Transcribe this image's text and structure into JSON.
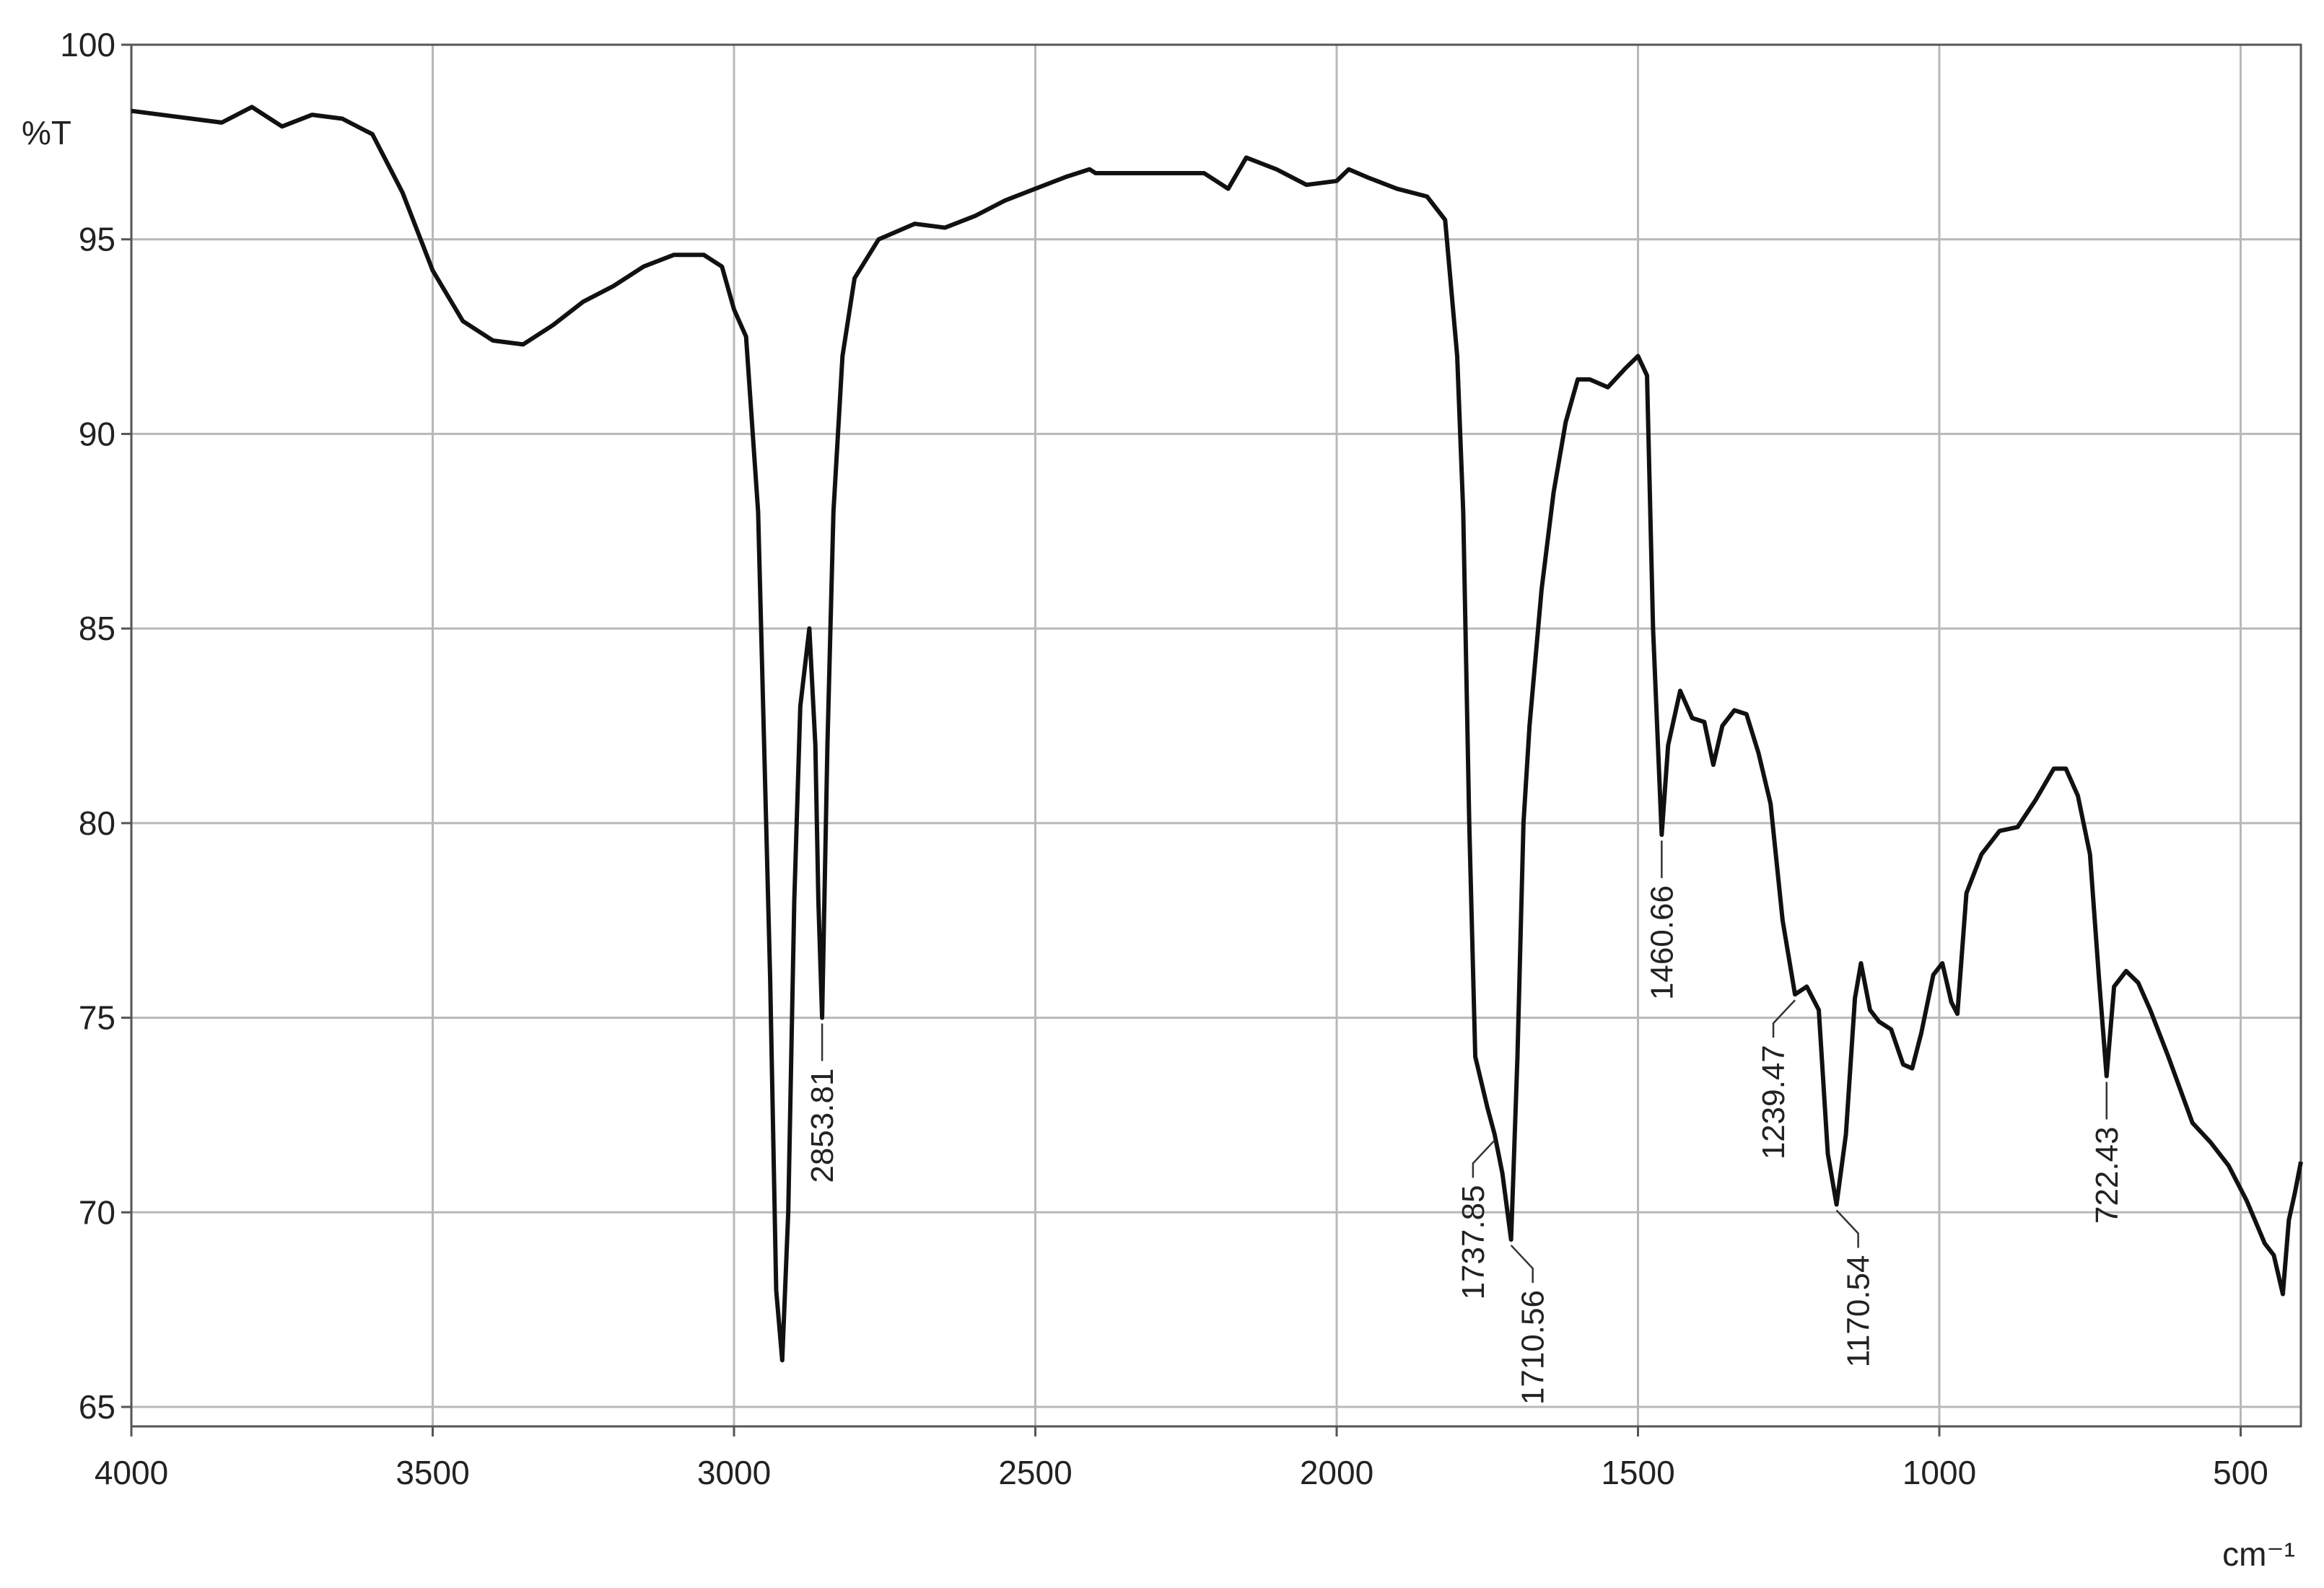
{
  "chart_data": {
    "type": "line",
    "y_label": "%T",
    "x_label": "cm⁻¹",
    "xlim": [
      4000,
      400
    ],
    "ylim": [
      64.5,
      100
    ],
    "xticks": [
      4000,
      3500,
      3000,
      2500,
      2000,
      1500,
      1000,
      500
    ],
    "yticks": [
      65,
      70,
      75,
      80,
      85,
      90,
      95,
      100
    ],
    "grid": true,
    "x": [
      4000,
      3900,
      3850,
      3800,
      3750,
      3700,
      3650,
      3600,
      3550,
      3520,
      3500,
      3450,
      3400,
      3350,
      3300,
      3250,
      3200,
      3150,
      3100,
      3050,
      3020,
      3000,
      2980,
      2960,
      2950,
      2940,
      2930,
      2920,
      2910,
      2900,
      2890,
      2875,
      2865,
      2860,
      2853.81,
      2845,
      2835,
      2820,
      2800,
      2760,
      2700,
      2650,
      2600,
      2550,
      2500,
      2450,
      2410,
      2400,
      2300,
      2220,
      2180,
      2150,
      2100,
      2050,
      2000,
      1980,
      1950,
      1900,
      1850,
      1820,
      1800,
      1790,
      1780,
      1770,
      1750,
      1737.85,
      1725,
      1710.56,
      1700,
      1690,
      1680,
      1660,
      1640,
      1620,
      1600,
      1580,
      1550,
      1520,
      1500,
      1485,
      1475,
      1460.66,
      1450,
      1430,
      1410,
      1390,
      1375,
      1360,
      1340,
      1320,
      1300,
      1280,
      1260,
      1239.47,
      1220,
      1200,
      1185,
      1170.54,
      1155,
      1140,
      1130,
      1115,
      1100,
      1080,
      1060,
      1045,
      1030,
      1010,
      995,
      980,
      970,
      955,
      930,
      900,
      870,
      840,
      810,
      790,
      770,
      750,
      735,
      722.43,
      710,
      690,
      670,
      650,
      620,
      580,
      550,
      520,
      490,
      460,
      445,
      430,
      420,
      410,
      400
    ],
    "series": [
      {
        "color": "#111111",
        "values": [
          98.3,
          98.1,
          98.0,
          98.4,
          97.9,
          98.2,
          98.1,
          97.7,
          96.2,
          95.0,
          94.2,
          92.9,
          92.4,
          92.3,
          92.8,
          93.4,
          93.8,
          94.3,
          94.6,
          94.6,
          94.3,
          93.2,
          92.5,
          88,
          82,
          76,
          68,
          66.2,
          70,
          78,
          83,
          85.0,
          82,
          78,
          75.0,
          82,
          88,
          92,
          94,
          95.0,
          95.4,
          95.3,
          95.6,
          96.0,
          96.3,
          96.6,
          96.8,
          96.7,
          96.7,
          96.7,
          96.3,
          97.1,
          96.8,
          96.4,
          96.5,
          96.8,
          96.6,
          96.3,
          96.1,
          95.5,
          92,
          88,
          80,
          74,
          72.7,
          72.0,
          71,
          69.3,
          74,
          80,
          82.5,
          86,
          88.5,
          90.3,
          91.4,
          91.4,
          91.2,
          91.7,
          92.0,
          91.5,
          85,
          79.7,
          82,
          83.4,
          82.7,
          82.6,
          81.5,
          82.5,
          82.9,
          82.8,
          81.8,
          80.5,
          77.5,
          75.6,
          75.8,
          75.2,
          71.5,
          70.2,
          72,
          75.5,
          76.4,
          75.2,
          74.9,
          74.7,
          73.8,
          73.7,
          74.6,
          76.1,
          76.4,
          75.4,
          75.1,
          78.2,
          79.2,
          79.8,
          79.9,
          80.6,
          81.4,
          81.4,
          80.7,
          79.2,
          76,
          73.5,
          75.8,
          76.2,
          75.9,
          75.2,
          74,
          72.3,
          71.8,
          71.2,
          70.3,
          69.2,
          68.9,
          67.9,
          69.8,
          70.5,
          71.3
        ]
      }
    ],
    "annotations": [
      {
        "label": "2853.81",
        "x": 2853.81,
        "y": 75.0
      },
      {
        "label": "1737.85",
        "x": 1737.85,
        "y": 72.0
      },
      {
        "label": "1710.56",
        "x": 1710.56,
        "y": 69.3
      },
      {
        "label": "1460.66",
        "x": 1460.66,
        "y": 79.7
      },
      {
        "label": "1239.47",
        "x": 1239.47,
        "y": 75.6
      },
      {
        "label": "1170.54",
        "x": 1170.54,
        "y": 70.2
      },
      {
        "label": "722.43",
        "x": 722.43,
        "y": 73.5
      }
    ]
  }
}
